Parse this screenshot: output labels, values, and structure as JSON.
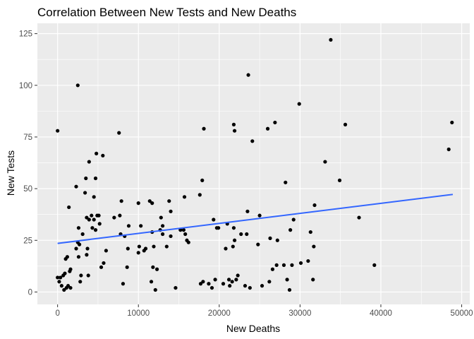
{
  "chart_data": {
    "type": "scatter",
    "title": "Correlation Between New Tests and New Deaths",
    "xlabel": "New Deaths",
    "ylabel": "New Tests",
    "xlim": [
      -2500,
      51000
    ],
    "ylim": [
      -6,
      130
    ],
    "x_ticks": [
      0,
      10000,
      20000,
      30000,
      40000,
      50000
    ],
    "x_tick_labels": [
      "0",
      "10000",
      "20000",
      "30000",
      "40000",
      "50000"
    ],
    "y_ticks": [
      0,
      25,
      50,
      75,
      100,
      125
    ],
    "y_tick_labels": [
      "0",
      "25",
      "50",
      "75",
      "100",
      "125"
    ],
    "grid": true,
    "panel_color": "#ebebeb",
    "point_color": "#000000",
    "trend_color": "#3366ff",
    "trend_line": {
      "x": [
        0,
        48900
      ],
      "y": [
        23.5,
        47.2
      ]
    },
    "points": [
      {
        "x": 0,
        "y": 78
      },
      {
        "x": 0,
        "y": 7
      },
      {
        "x": 200,
        "y": 5
      },
      {
        "x": 350,
        "y": 7
      },
      {
        "x": 500,
        "y": 3
      },
      {
        "x": 700,
        "y": 8
      },
      {
        "x": 800,
        "y": 1
      },
      {
        "x": 900,
        "y": 9
      },
      {
        "x": 1000,
        "y": 16
      },
      {
        "x": 1100,
        "y": 2
      },
      {
        "x": 1200,
        "y": 17
      },
      {
        "x": 1300,
        "y": 3
      },
      {
        "x": 1400,
        "y": 41
      },
      {
        "x": 1500,
        "y": 10
      },
      {
        "x": 1600,
        "y": 11
      },
      {
        "x": 1600,
        "y": 2
      },
      {
        "x": 2300,
        "y": 51
      },
      {
        "x": 2300,
        "y": 21
      },
      {
        "x": 2500,
        "y": 100
      },
      {
        "x": 2500,
        "y": 24
      },
      {
        "x": 2600,
        "y": 31
      },
      {
        "x": 2600,
        "y": 17
      },
      {
        "x": 2700,
        "y": 23
      },
      {
        "x": 2800,
        "y": 5
      },
      {
        "x": 2900,
        "y": 8
      },
      {
        "x": 3100,
        "y": 28
      },
      {
        "x": 3400,
        "y": 48
      },
      {
        "x": 3500,
        "y": 55
      },
      {
        "x": 3600,
        "y": 36
      },
      {
        "x": 3600,
        "y": 18
      },
      {
        "x": 3700,
        "y": 21
      },
      {
        "x": 3800,
        "y": 8
      },
      {
        "x": 3900,
        "y": 63
      },
      {
        "x": 3900,
        "y": 35
      },
      {
        "x": 4200,
        "y": 37
      },
      {
        "x": 4300,
        "y": 31
      },
      {
        "x": 4500,
        "y": 46
      },
      {
        "x": 4500,
        "y": 35
      },
      {
        "x": 4700,
        "y": 55
      },
      {
        "x": 4700,
        "y": 30
      },
      {
        "x": 4800,
        "y": 67
      },
      {
        "x": 4900,
        "y": 37
      },
      {
        "x": 5100,
        "y": 37
      },
      {
        "x": 5200,
        "y": 33
      },
      {
        "x": 5400,
        "y": 12
      },
      {
        "x": 5600,
        "y": 66
      },
      {
        "x": 5700,
        "y": 14
      },
      {
        "x": 6000,
        "y": 20
      },
      {
        "x": 7000,
        "y": 36
      },
      {
        "x": 7600,
        "y": 77
      },
      {
        "x": 7700,
        "y": 37
      },
      {
        "x": 7800,
        "y": 28
      },
      {
        "x": 7900,
        "y": 44
      },
      {
        "x": 8100,
        "y": 4
      },
      {
        "x": 8300,
        "y": 27
      },
      {
        "x": 8600,
        "y": 12
      },
      {
        "x": 8700,
        "y": 21
      },
      {
        "x": 8800,
        "y": 32
      },
      {
        "x": 10000,
        "y": 43
      },
      {
        "x": 10000,
        "y": 19
      },
      {
        "x": 10100,
        "y": 22
      },
      {
        "x": 10300,
        "y": 32
      },
      {
        "x": 10700,
        "y": 20
      },
      {
        "x": 10900,
        "y": 21
      },
      {
        "x": 11400,
        "y": 44
      },
      {
        "x": 11600,
        "y": 5
      },
      {
        "x": 11700,
        "y": 43
      },
      {
        "x": 11700,
        "y": 29
      },
      {
        "x": 11800,
        "y": 12
      },
      {
        "x": 11900,
        "y": 22
      },
      {
        "x": 12100,
        "y": 1
      },
      {
        "x": 12300,
        "y": 11
      },
      {
        "x": 12700,
        "y": 30
      },
      {
        "x": 12800,
        "y": 36
      },
      {
        "x": 13000,
        "y": 32
      },
      {
        "x": 13000,
        "y": 28
      },
      {
        "x": 13500,
        "y": 22
      },
      {
        "x": 13800,
        "y": 44
      },
      {
        "x": 14000,
        "y": 27
      },
      {
        "x": 14000,
        "y": 39
      },
      {
        "x": 14600,
        "y": 2
      },
      {
        "x": 15200,
        "y": 30
      },
      {
        "x": 15600,
        "y": 30
      },
      {
        "x": 15700,
        "y": 46
      },
      {
        "x": 15800,
        "y": 28
      },
      {
        "x": 16000,
        "y": 25
      },
      {
        "x": 16200,
        "y": 24
      },
      {
        "x": 17600,
        "y": 47
      },
      {
        "x": 17700,
        "y": 4
      },
      {
        "x": 17900,
        "y": 54
      },
      {
        "x": 18000,
        "y": 5
      },
      {
        "x": 18100,
        "y": 79
      },
      {
        "x": 18700,
        "y": 4
      },
      {
        "x": 19100,
        "y": 2
      },
      {
        "x": 19300,
        "y": 35
      },
      {
        "x": 19500,
        "y": 6
      },
      {
        "x": 19700,
        "y": 31
      },
      {
        "x": 19900,
        "y": 31
      },
      {
        "x": 20500,
        "y": 4
      },
      {
        "x": 20800,
        "y": 21
      },
      {
        "x": 21000,
        "y": 33
      },
      {
        "x": 21200,
        "y": 6
      },
      {
        "x": 21300,
        "y": 3
      },
      {
        "x": 21600,
        "y": 5
      },
      {
        "x": 21700,
        "y": 22
      },
      {
        "x": 21800,
        "y": 31
      },
      {
        "x": 21800,
        "y": 81
      },
      {
        "x": 21900,
        "y": 78
      },
      {
        "x": 21900,
        "y": 25
      },
      {
        "x": 22100,
        "y": 6
      },
      {
        "x": 22300,
        "y": 8
      },
      {
        "x": 22700,
        "y": 28
      },
      {
        "x": 23200,
        "y": 3
      },
      {
        "x": 23400,
        "y": 28
      },
      {
        "x": 23500,
        "y": 39
      },
      {
        "x": 23600,
        "y": 105
      },
      {
        "x": 23800,
        "y": 2
      },
      {
        "x": 24100,
        "y": 73
      },
      {
        "x": 24800,
        "y": 23
      },
      {
        "x": 25000,
        "y": 37
      },
      {
        "x": 25300,
        "y": 3
      },
      {
        "x": 26000,
        "y": 79
      },
      {
        "x": 26200,
        "y": 5
      },
      {
        "x": 26300,
        "y": 26
      },
      {
        "x": 26600,
        "y": 11
      },
      {
        "x": 26900,
        "y": 82
      },
      {
        "x": 27100,
        "y": 13
      },
      {
        "x": 27200,
        "y": 25
      },
      {
        "x": 28000,
        "y": 13
      },
      {
        "x": 28200,
        "y": 53
      },
      {
        "x": 28400,
        "y": 6
      },
      {
        "x": 28700,
        "y": 1
      },
      {
        "x": 28800,
        "y": 30
      },
      {
        "x": 29000,
        "y": 13
      },
      {
        "x": 29200,
        "y": 35
      },
      {
        "x": 29900,
        "y": 91
      },
      {
        "x": 30100,
        "y": 14
      },
      {
        "x": 31000,
        "y": 15
      },
      {
        "x": 31300,
        "y": 29
      },
      {
        "x": 31600,
        "y": 6
      },
      {
        "x": 31700,
        "y": 22
      },
      {
        "x": 31800,
        "y": 42
      },
      {
        "x": 33100,
        "y": 63
      },
      {
        "x": 33800,
        "y": 122
      },
      {
        "x": 34900,
        "y": 54
      },
      {
        "x": 35600,
        "y": 81
      },
      {
        "x": 37300,
        "y": 36
      },
      {
        "x": 39200,
        "y": 13
      },
      {
        "x": 48400,
        "y": 69
      },
      {
        "x": 48800,
        "y": 82
      }
    ]
  }
}
